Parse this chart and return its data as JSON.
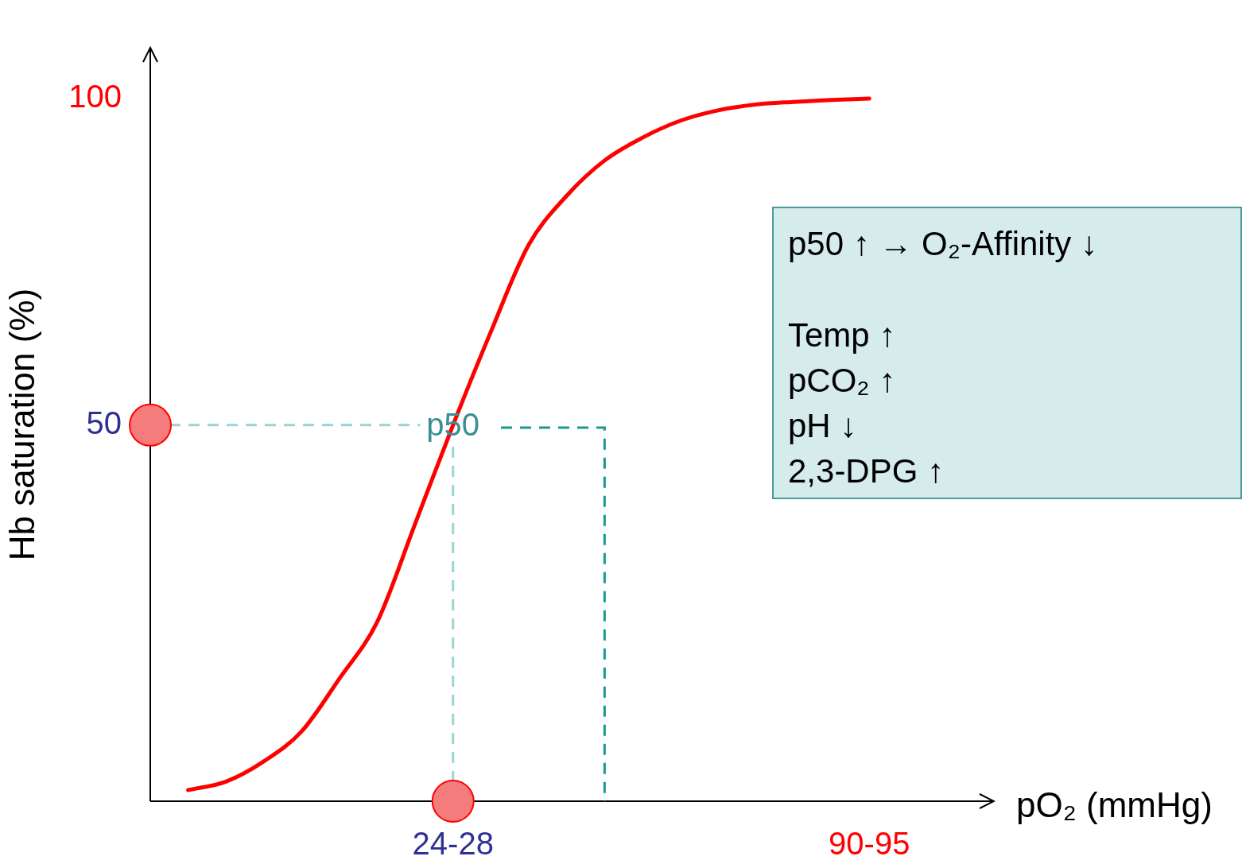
{
  "chart_data": {
    "type": "line",
    "xlabel": "pO₂ (mmHg)",
    "ylabel": "Hb saturation (%)",
    "categories": [
      null,
      null,
      null,
      null,
      null,
      null,
      null,
      null,
      "24-28",
      null,
      null,
      null,
      null,
      null,
      null,
      null,
      null,
      null,
      null,
      "90-95",
      null,
      null,
      null
    ],
    "ylim": [
      -7.6,
      107.8
    ],
    "yticks": [
      50,
      100
    ],
    "line_style": "solid",
    "series": [
      {
        "color": "#ff0000",
        "marker": "none",
        "values": [
          null,
          -5.9,
          -4.6,
          -1.5,
          3.1,
          11.2,
          19.9,
          34.9,
          50.0,
          64.3,
          77.6,
          85.1,
          90.5,
          94.0,
          96.6,
          98.2,
          99.1,
          99.5,
          99.8,
          100.0,
          null,
          null,
          null
        ]
      },
      {
        "type": "scatter",
        "color": "#f47c7c",
        "marker": "circle",
        "values": [
          50,
          null,
          null,
          null,
          null,
          null,
          null,
          null,
          -7.6,
          null,
          null,
          null,
          null,
          null,
          null,
          null,
          null,
          null,
          null,
          null,
          null,
          null,
          null
        ]
      }
    ],
    "ref_lines": [
      {
        "axis": "y",
        "value": 50,
        "color": "#99d5d5",
        "line_style": "dashed"
      },
      {
        "axis": "x",
        "value": "24-28",
        "color": "#99d5d5",
        "line_style": "dashed"
      }
    ],
    "annotations": [
      {
        "text": "p50",
        "x": "24-28",
        "y": 50
      },
      "p50 ↑  →  O₂-Affinity ↓",
      "Temp ↑",
      "pCO₂ ↑",
      "pH ↓",
      "2,3-DPG ↑"
    ]
  }
}
